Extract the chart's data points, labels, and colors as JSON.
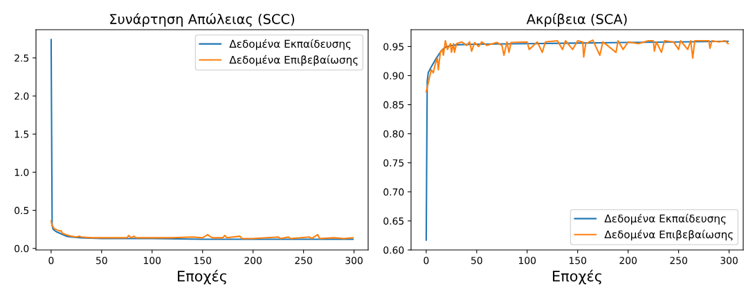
{
  "chart_data": [
    {
      "type": "line",
      "title": "Συνάρτηση Απώλειας (SCC)",
      "xlabel": "Εποχές",
      "legend": "top right",
      "grid": false,
      "xlim": [
        -15,
        314
      ],
      "xticks": [
        0,
        50,
        100,
        150,
        200,
        250,
        300
      ],
      "ylim": [
        -0.02,
        2.87
      ],
      "yticks": [
        {
          "value": 0,
          "label": "0.0"
        },
        0.5,
        {
          "value": 1,
          "label": "1.0"
        },
        1.5,
        {
          "value": 2,
          "label": "2.0"
        },
        2.5
      ],
      "series": [
        {
          "name": "Δεδομένα Εκπαίδευσης",
          "color": "#1f77b4",
          "x": [
            0,
            1,
            2,
            5,
            10,
            15,
            20,
            30,
            50,
            100,
            150,
            200,
            250,
            299
          ],
          "values": [
            2.74,
            0.3,
            0.25,
            0.22,
            0.19,
            0.16,
            0.15,
            0.14,
            0.13,
            0.13,
            0.12,
            0.12,
            0.12,
            0.12
          ]
        },
        {
          "name": "Δεδομένα Επιβεβαίωσης",
          "color": "#ff7f0e",
          "x": [
            0,
            1,
            3,
            8,
            10,
            11,
            15,
            20,
            25,
            28,
            30,
            40,
            50,
            60,
            75,
            77,
            79,
            82,
            84,
            100,
            120,
            140,
            150,
            155,
            157,
            160,
            170,
            172,
            174,
            187,
            189,
            200,
            225,
            227,
            235,
            237,
            256,
            258,
            264,
            266,
            280,
            290,
            299
          ],
          "values": [
            0.36,
            0.3,
            0.26,
            0.23,
            0.23,
            0.2,
            0.18,
            0.16,
            0.15,
            0.16,
            0.15,
            0.14,
            0.14,
            0.14,
            0.14,
            0.17,
            0.14,
            0.16,
            0.14,
            0.14,
            0.14,
            0.15,
            0.14,
            0.18,
            0.16,
            0.14,
            0.14,
            0.17,
            0.14,
            0.16,
            0.13,
            0.13,
            0.15,
            0.13,
            0.15,
            0.13,
            0.15,
            0.13,
            0.18,
            0.13,
            0.14,
            0.13,
            0.14
          ]
        }
      ]
    },
    {
      "type": "line",
      "title": "Ακρίβεια (SCA)",
      "xlabel": "Εποχές",
      "legend": "bottom right",
      "grid": false,
      "xlim": [
        -15,
        314
      ],
      "xticks": [
        0,
        50,
        100,
        150,
        200,
        250,
        300
      ],
      "ylim": [
        0.6,
        0.979
      ],
      "yticks": [
        {
          "value": 0.6,
          "label": "0.60"
        },
        0.65,
        {
          "value": 0.7,
          "label": "0.70"
        },
        0.75,
        {
          "value": 0.8,
          "label": "0.80"
        },
        0.85,
        {
          "value": 0.9,
          "label": "0.90"
        },
        0.95
      ],
      "series": [
        {
          "name": "Δεδομένα Εκπαίδευσης",
          "color": "#1f77b4",
          "x": [
            0,
            1,
            2,
            5,
            10,
            15,
            20,
            30,
            50,
            100,
            150,
            200,
            250,
            299
          ],
          "values": [
            0.617,
            0.89,
            0.905,
            0.915,
            0.93,
            0.943,
            0.95,
            0.953,
            0.954,
            0.955,
            0.956,
            0.957,
            0.958,
            0.959
          ]
        },
        {
          "name": "Δεδομένα Επιβεβαίωσης",
          "color": "#ff7f0e",
          "x": [
            0,
            3,
            5,
            7,
            9,
            11,
            12,
            14,
            16,
            17,
            19,
            21,
            24,
            25,
            27,
            28,
            30,
            35,
            40,
            43,
            45,
            48,
            52,
            55,
            60,
            70,
            75,
            77,
            80,
            82,
            84,
            100,
            102,
            110,
            115,
            118,
            130,
            135,
            138,
            145,
            150,
            155,
            156,
            158,
            165,
            172,
            175,
            188,
            190,
            195,
            200,
            210,
            220,
            225,
            226,
            228,
            233,
            236,
            245,
            250,
            252,
            259,
            262,
            264,
            266,
            280,
            281,
            283,
            290,
            296,
            299
          ],
          "values": [
            0.872,
            0.895,
            0.91,
            0.905,
            0.92,
            0.93,
            0.91,
            0.94,
            0.945,
            0.935,
            0.96,
            0.945,
            0.955,
            0.94,
            0.955,
            0.94,
            0.955,
            0.958,
            0.952,
            0.958,
            0.942,
            0.957,
            0.95,
            0.958,
            0.952,
            0.957,
            0.952,
            0.935,
            0.958,
            0.94,
            0.957,
            0.958,
            0.945,
            0.958,
            0.94,
            0.958,
            0.96,
            0.945,
            0.96,
            0.945,
            0.96,
            0.958,
            0.932,
            0.955,
            0.961,
            0.935,
            0.958,
            0.94,
            0.96,
            0.945,
            0.958,
            0.955,
            0.96,
            0.96,
            0.942,
            0.958,
            0.94,
            0.96,
            0.958,
            0.945,
            0.96,
            0.945,
            0.96,
            0.93,
            0.96,
            0.96,
            0.947,
            0.96,
            0.958,
            0.96,
            0.955
          ]
        }
      ]
    }
  ]
}
